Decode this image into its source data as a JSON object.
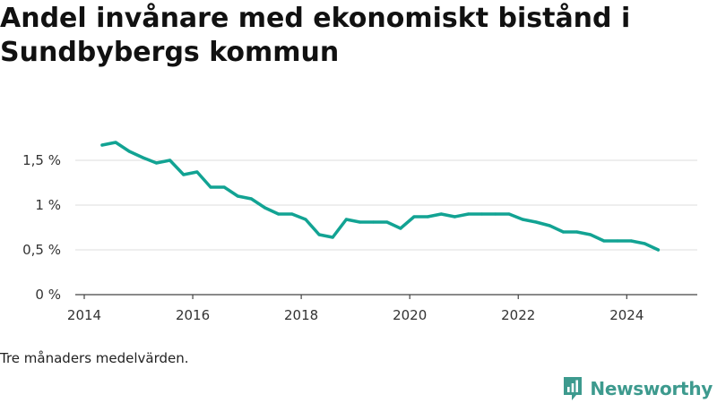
{
  "chart_data": {
    "type": "line",
    "title": "Andel invånare med ekonomiskt bistånd i Sundbybergs kommun",
    "note": "Tre månaders medelvärden.",
    "xlim": [
      2014,
      2025.3
    ],
    "ylim": [
      0,
      1.5
    ],
    "x_ticks": [
      2014,
      2016,
      2018,
      2020,
      2022,
      2024
    ],
    "x_tick_labels": [
      "2014",
      "2016",
      "2018",
      "2020",
      "2022",
      "2024"
    ],
    "y_ticks": [
      0,
      0.5,
      1,
      1.5
    ],
    "y_tick_labels": [
      "0 %",
      "0,5 %",
      "1 %",
      "1,5 %"
    ],
    "grid": true,
    "series": [
      {
        "color": "#12a393",
        "x": [
          2014.33,
          2014.58,
          2014.83,
          2015.08,
          2015.33,
          2015.58,
          2015.83,
          2016.08,
          2016.33,
          2016.58,
          2016.83,
          2017.08,
          2017.33,
          2017.58,
          2017.83,
          2018.08,
          2018.33,
          2018.58,
          2018.83,
          2019.08,
          2019.33,
          2019.58,
          2019.83,
          2020.08,
          2020.33,
          2020.58,
          2020.83,
          2021.08,
          2021.33,
          2021.58,
          2021.83,
          2022.08,
          2022.33,
          2022.58,
          2022.83,
          2023.08,
          2023.33,
          2023.58,
          2023.83,
          2024.08,
          2024.33,
          2024.58
        ],
        "y": [
          1.67,
          1.7,
          1.6,
          1.53,
          1.47,
          1.5,
          1.34,
          1.37,
          1.2,
          1.2,
          1.1,
          1.07,
          0.97,
          0.9,
          0.9,
          0.84,
          0.67,
          0.64,
          0.84,
          0.81,
          0.81,
          0.81,
          0.74,
          0.87,
          0.87,
          0.9,
          0.87,
          0.9,
          0.9,
          0.9,
          0.9,
          0.84,
          0.81,
          0.77,
          0.7,
          0.7,
          0.67,
          0.6,
          0.6,
          0.6,
          0.57,
          0.5
        ]
      }
    ]
  },
  "branding": {
    "name": "Newsworthy",
    "color": "#3d9a8e",
    "icon": "newsworthy-logo-icon"
  }
}
